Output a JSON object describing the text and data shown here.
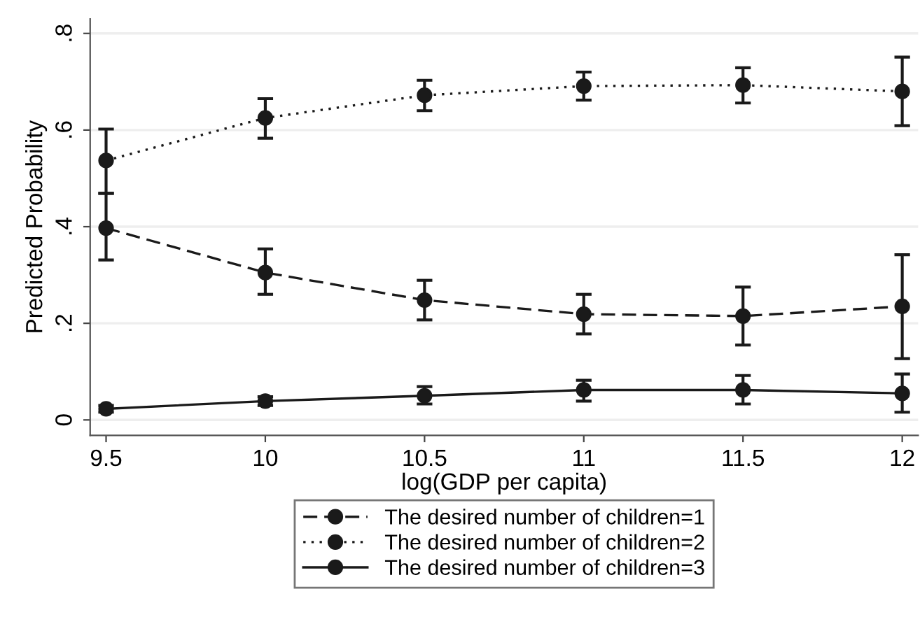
{
  "chart_data": {
    "type": "line",
    "xlabel": "log(GDP per capita)",
    "ylabel": "Predicted Probability",
    "x": [
      9.5,
      10,
      10.5,
      11,
      11.5,
      12
    ],
    "xlim": [
      9.45,
      12.05
    ],
    "xticks": [
      9.5,
      10,
      10.5,
      11,
      11.5,
      12
    ],
    "ylim": [
      -0.032,
      0.83
    ],
    "yticks": [
      {
        "value": 0,
        "label": "0"
      },
      {
        "value": 0.2,
        "label": ".2"
      },
      {
        "value": 0.4,
        "label": ".4"
      },
      {
        "value": 0.6,
        "label": ".6"
      },
      {
        "value": 0.8,
        "label": ".8"
      }
    ],
    "grid": "y",
    "legend": "bottom",
    "marker": "circle",
    "series": [
      {
        "name": "The desired number of children=1",
        "color": "#1a1a1a",
        "line_style": "dashed",
        "values": [
          0.397,
          0.305,
          0.248,
          0.219,
          0.215,
          0.235
        ],
        "errors": [
          [
            0.331,
            0.469
          ],
          [
            0.26,
            0.354
          ],
          [
            0.207,
            0.289
          ],
          [
            0.178,
            0.26
          ],
          [
            0.155,
            0.275
          ],
          [
            0.127,
            0.342
          ]
        ]
      },
      {
        "name": "The desired number of children=2",
        "color": "#1a1a1a",
        "line_style": "dotted",
        "values": [
          0.537,
          0.625,
          0.672,
          0.691,
          0.693,
          0.68
        ],
        "errors": [
          [
            0.469,
            0.602
          ],
          [
            0.583,
            0.665
          ],
          [
            0.64,
            0.703
          ],
          [
            0.662,
            0.72
          ],
          [
            0.656,
            0.729
          ],
          [
            0.609,
            0.751
          ]
        ]
      },
      {
        "name": "The desired number of children=3",
        "color": "#1a1a1a",
        "line_style": "solid",
        "values": [
          0.023,
          0.039,
          0.05,
          0.062,
          0.062,
          0.055
        ],
        "errors": [
          [
            0.016,
            0.03
          ],
          [
            0.03,
            0.048
          ],
          [
            0.033,
            0.069
          ],
          [
            0.039,
            0.082
          ],
          [
            0.033,
            0.092
          ],
          [
            0.016,
            0.095
          ]
        ]
      }
    ]
  }
}
